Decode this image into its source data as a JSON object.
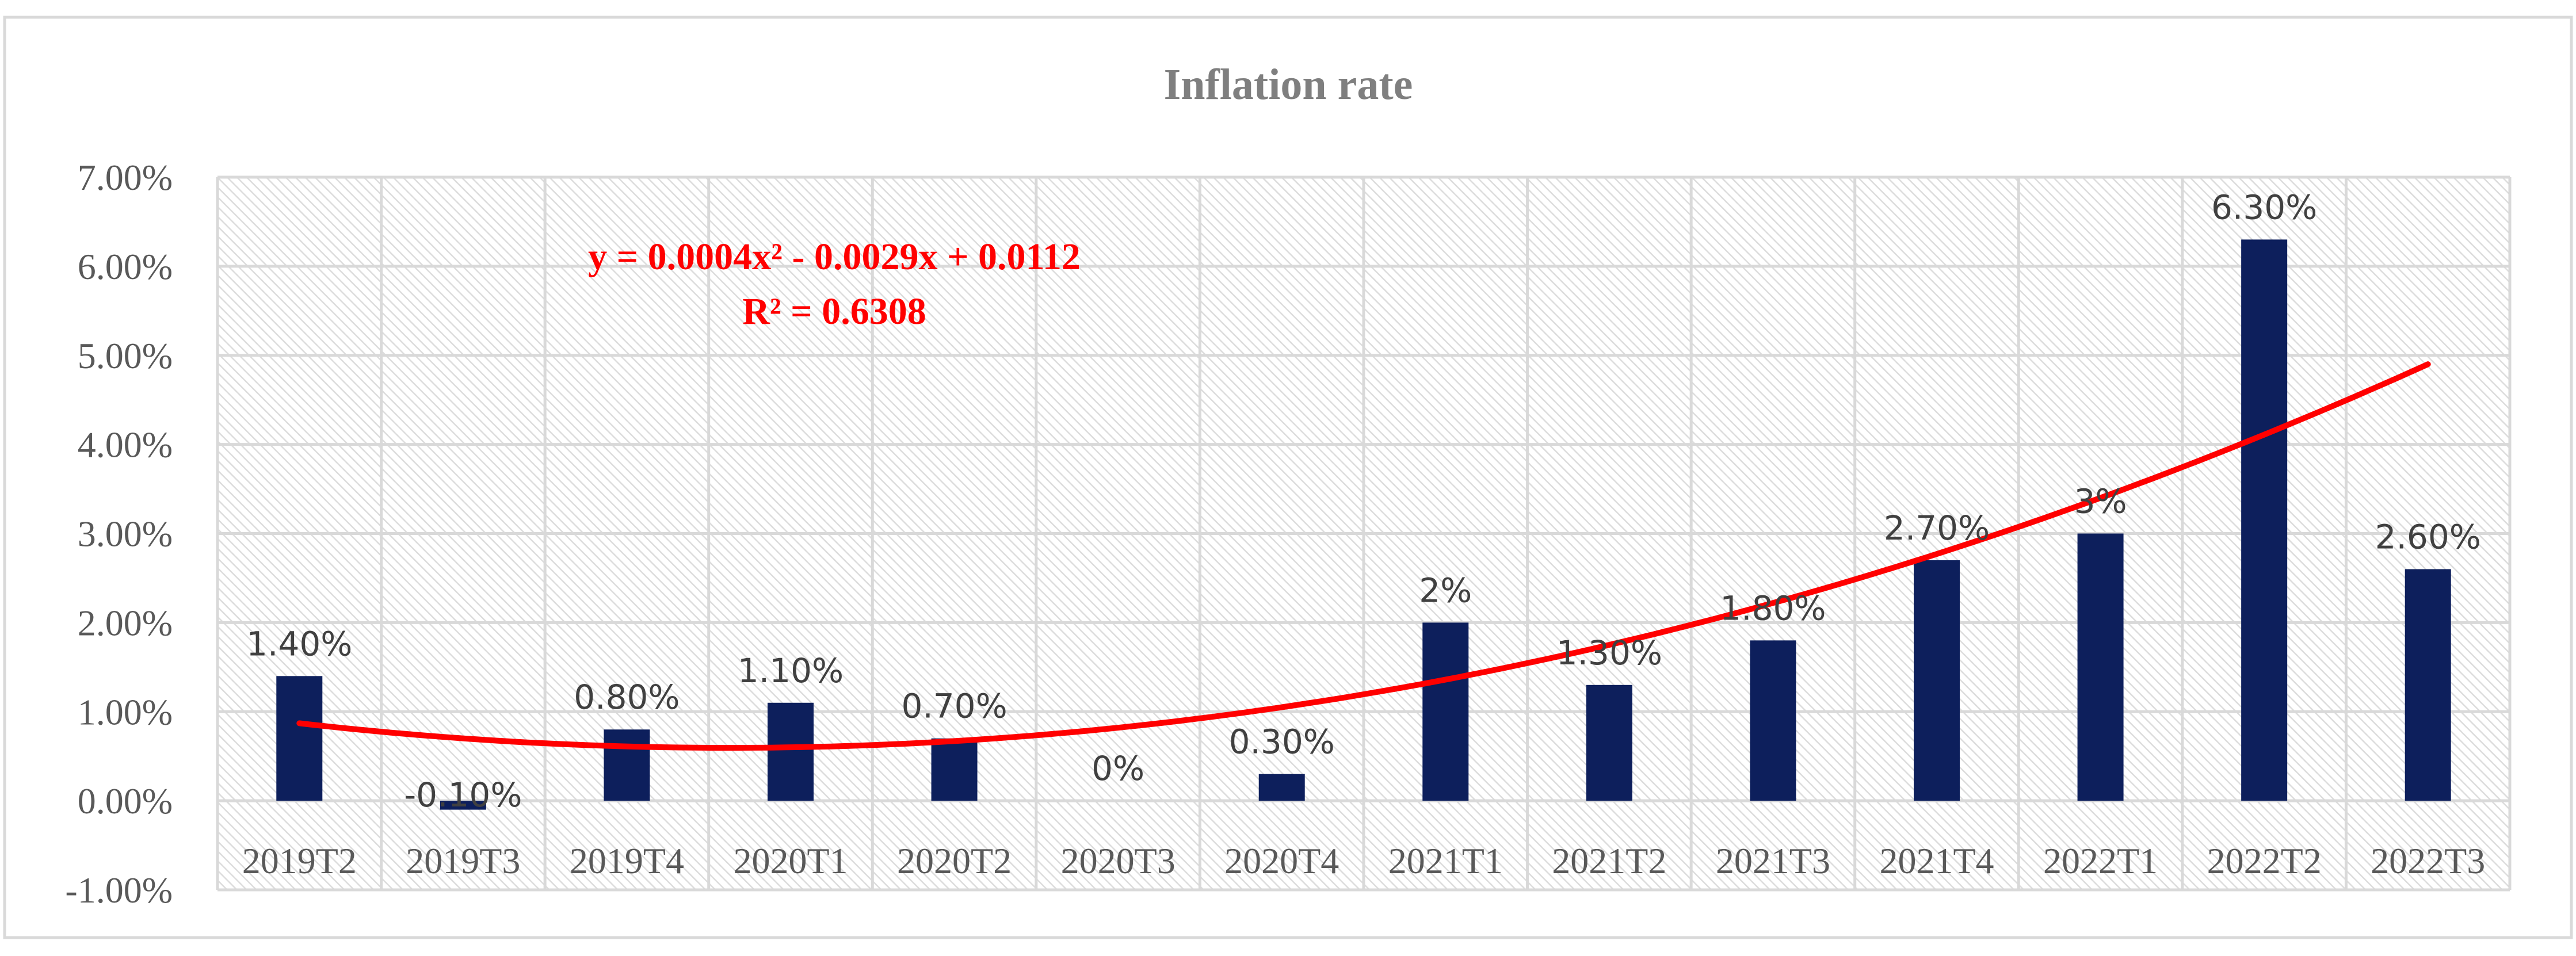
{
  "chart_data": {
    "type": "bar",
    "title": "Inflation rate",
    "xlabel": "",
    "ylabel": "",
    "categories": [
      "2019T2",
      "2019T3",
      "2019T4",
      "2020T1",
      "2020T2",
      "2020T3",
      "2020T4",
      "2021T1",
      "2021T2",
      "2021T3",
      "2021T4",
      "2022T1",
      "2022T2",
      "2022T3"
    ],
    "series": [
      {
        "name": "Inflation rate",
        "color": "#0d1f5c",
        "values": [
          0.014,
          -0.001,
          0.008,
          0.011,
          0.007,
          0,
          0.003,
          0.02,
          0.013,
          0.018,
          0.027,
          0.03,
          0.063,
          0.026
        ],
        "labels": [
          "1.40%",
          "-0.10%",
          "0.80%",
          "1.10%",
          "0.70%",
          "0%",
          "0.30%",
          "2%",
          "1.30%",
          "1.80%",
          "2.70%",
          "3%",
          "6.30%",
          "2.60%"
        ]
      }
    ],
    "ylim": [
      -0.01,
      0.07
    ],
    "yticks": [
      0.07,
      0.06,
      0.05,
      0.04,
      0.03,
      0.02,
      0.01,
      0,
      -0.01
    ],
    "ytick_labels": [
      "7.00%",
      "6.00%",
      "5.00%",
      "4.00%",
      "3.00%",
      "2.00%",
      "1.00%",
      "0.00%",
      "-1.00%"
    ],
    "grid": true,
    "legend": "none",
    "trendline": {
      "type": "polynomial",
      "order": 2,
      "coefficients": [
        0.0004,
        -0.0029,
        0.0112
      ],
      "color": "#ff0000",
      "equation": "y = 0.0004x² - 0.0029x + 0.0112",
      "r_squared": "R² = 0.6308"
    }
  }
}
